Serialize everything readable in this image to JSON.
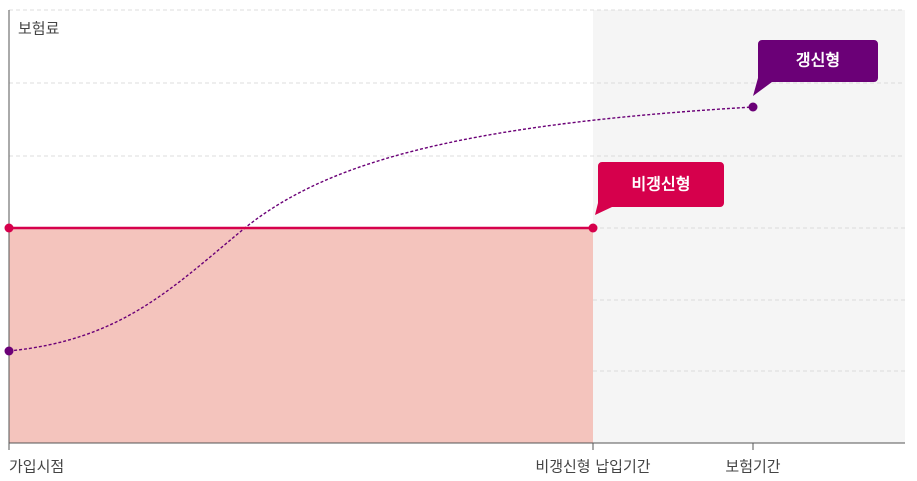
{
  "axis": {
    "y_label": "보험료",
    "x_labels": [
      "가입시점",
      "비갱신형 납입기간",
      "보험기간"
    ]
  },
  "callouts": {
    "renewal": "갱신형",
    "non_renewal": "비갱신형"
  }
}
